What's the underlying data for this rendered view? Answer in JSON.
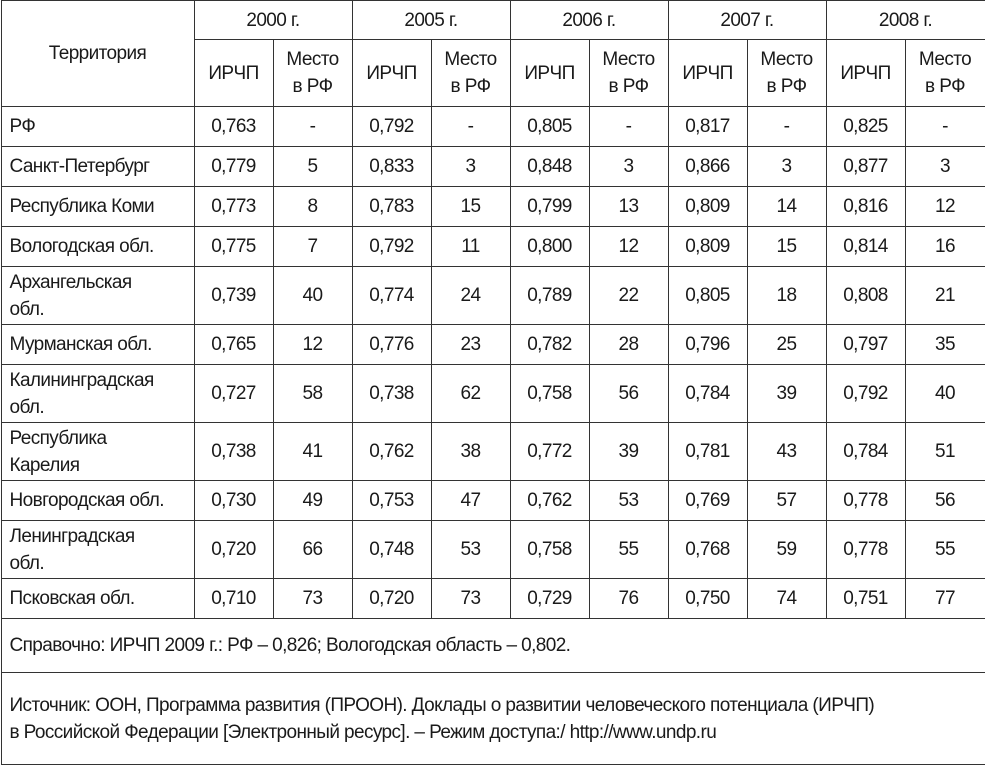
{
  "table": {
    "header": {
      "territory": "Территория",
      "years": [
        "2000 г.",
        "2005 г.",
        "2006 г.",
        "2007 г.",
        "2008 г."
      ],
      "sub": [
        "ИРЧП",
        "Место\nв РФ"
      ]
    },
    "rows": [
      {
        "name": "РФ",
        "cells": [
          "0,763",
          "-",
          "0,792",
          "-",
          "0,805",
          "-",
          "0,817",
          "-",
          "0,825",
          "-"
        ]
      },
      {
        "name": "Санкт-Петербург",
        "cells": [
          "0,779",
          "5",
          "0,833",
          "3",
          "0,848",
          "3",
          "0,866",
          "3",
          "0,877",
          "3"
        ]
      },
      {
        "name": "Республика Коми",
        "cells": [
          "0,773",
          "8",
          "0,783",
          "15",
          "0,799",
          "13",
          "0,809",
          "14",
          "0,816",
          "12"
        ]
      },
      {
        "name": "Вологодская обл.",
        "cells": [
          "0,775",
          "7",
          "0,792",
          "11",
          "0,800",
          "12",
          "0,809",
          "15",
          "0,814",
          "16"
        ]
      },
      {
        "name": "Архангельская\nобл.",
        "cells": [
          "0,739",
          "40",
          "0,774",
          "24",
          "0,789",
          "22",
          "0,805",
          "18",
          "0,808",
          "21"
        ]
      },
      {
        "name": "Мурманская обл.",
        "cells": [
          "0,765",
          "12",
          "0,776",
          "23",
          "0,782",
          "28",
          "0,796",
          "25",
          "0,797",
          "35"
        ]
      },
      {
        "name": "Калининградская\nобл.",
        "cells": [
          "0,727",
          "58",
          "0,738",
          "62",
          "0,758",
          "56",
          "0,784",
          "39",
          "0,792",
          "40"
        ]
      },
      {
        "name": "Республика\nКарелия",
        "cells": [
          "0,738",
          "41",
          "0,762",
          "38",
          "0,772",
          "39",
          "0,781",
          "43",
          "0,784",
          "51"
        ]
      },
      {
        "name": "Новгородская обл.",
        "cells": [
          "0,730",
          "49",
          "0,753",
          "47",
          "0,762",
          "53",
          "0,769",
          "57",
          "0,778",
          "56"
        ]
      },
      {
        "name": "Ленинградская\nобл.",
        "cells": [
          "0,720",
          "66",
          "0,748",
          "53",
          "0,758",
          "55",
          "0,768",
          "59",
          "0,778",
          "55"
        ]
      },
      {
        "name": "Псковская обл.",
        "cells": [
          "0,710",
          "73",
          "0,720",
          "73",
          "0,729",
          "76",
          "0,750",
          "74",
          "0,751",
          "77"
        ]
      }
    ],
    "note": "Справочно: ИРЧП 2009 г.: РФ – 0,826; Вологодская область – 0,802.",
    "source": "Источник: ООН, Программа развития (ПРООН). Доклады о развитии человеческого потенциала (ИРЧП)\nв Российской Федерации [Электронный ресурс]. – Режим доступа:/ http://www.undp.ru"
  }
}
